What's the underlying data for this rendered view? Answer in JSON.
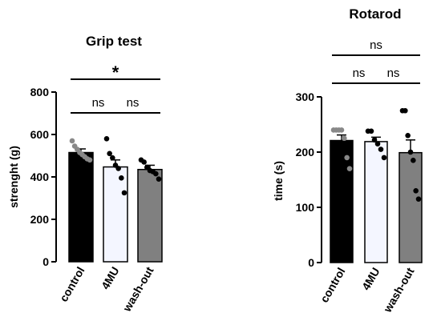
{
  "chart_data": [
    {
      "type": "bar",
      "title": "Grip test",
      "xlabel": "",
      "ylabel": "strenght (g)",
      "ylim": [
        0,
        800
      ],
      "yticks": [
        "0",
        "200",
        "400",
        "600",
        "800"
      ],
      "categories": [
        "control",
        "4MU",
        "wash-out"
      ],
      "values": [
        515,
        447,
        435
      ],
      "sem": [
        17,
        33,
        20
      ],
      "bar_colors": [
        "#000000",
        "#f4f6ff",
        "#808080"
      ],
      "point_colors": [
        "#888888",
        "#000000",
        "#000000"
      ],
      "points": [
        [
          570,
          545,
          530,
          515,
          505,
          495,
          485,
          480
        ],
        [
          580,
          510,
          490,
          455,
          440,
          395,
          325
        ],
        [
          480,
          470,
          445,
          430,
          425,
          415,
          390
        ]
      ],
      "comparisons": [
        {
          "from": 0,
          "to": 1,
          "label": "ns"
        },
        {
          "from": 1,
          "to": 2,
          "label": "ns"
        },
        {
          "from": 0,
          "to": 2,
          "label": "*"
        }
      ]
    },
    {
      "type": "bar",
      "title": "Rotarod",
      "xlabel": "",
      "ylabel": "time (s)",
      "ylim": [
        0,
        300
      ],
      "yticks": [
        "0",
        "100",
        "200",
        "300"
      ],
      "categories": [
        "control",
        "4MU",
        "wash-out"
      ],
      "values": [
        221,
        219,
        199
      ],
      "sem": [
        10,
        8,
        23
      ],
      "bar_colors": [
        "#000000",
        "#f4f6ff",
        "#808080"
      ],
      "point_colors": [
        "#888888",
        "#000000",
        "#000000"
      ],
      "points": [
        [
          240,
          240,
          240,
          240,
          225,
          190,
          170
        ],
        [
          238,
          238,
          222,
          215,
          205,
          190
        ],
        [
          275,
          275,
          230,
          200,
          185,
          130,
          115
        ]
      ],
      "comparisons": [
        {
          "from": 0,
          "to": 1,
          "label": "ns"
        },
        {
          "from": 1,
          "to": 2,
          "label": "ns"
        },
        {
          "from": 0,
          "to": 2,
          "label": "ns"
        }
      ]
    }
  ]
}
